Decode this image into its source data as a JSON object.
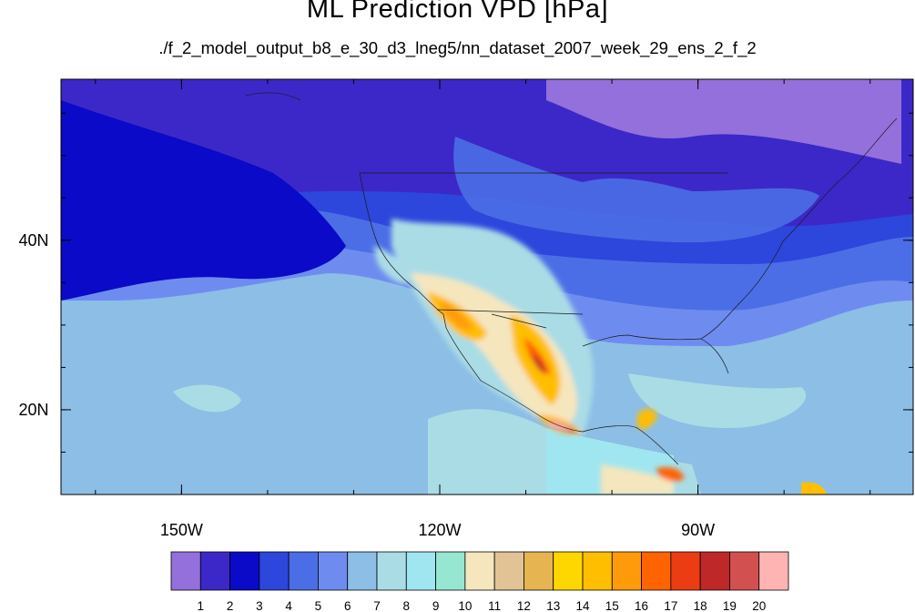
{
  "title": "ML Prediction VPD [hPa]",
  "subtitle": "./f_2_model_output_b8_e_30_d3_lneg5/nn_dataset_2007_week_29_ens_2_f_2",
  "map": {
    "lon_range": [
      -164,
      -65
    ],
    "lat_range": [
      10,
      59
    ],
    "lon_ticks": [
      {
        "value": -150,
        "label": "150W"
      },
      {
        "value": -120,
        "label": "120W"
      },
      {
        "value": -90,
        "label": "90W"
      }
    ],
    "lat_ticks": [
      {
        "value": 40,
        "label": "40N"
      },
      {
        "value": 20,
        "label": "20N"
      }
    ]
  },
  "colorbar": {
    "colors": [
      "#9370db",
      "#3c28c8",
      "#0a0ac8",
      "#2d46dc",
      "#4b6ee6",
      "#6e8cf0",
      "#8cbee6",
      "#aadce6",
      "#a0e6f0",
      "#96e6d2",
      "#f5e6be",
      "#e1c396",
      "#e6b450",
      "#ffd700",
      "#ffbe00",
      "#ff9b0a",
      "#ff6400",
      "#eb3c14",
      "#be2828",
      "#d25050",
      "#ffb4b4"
    ],
    "labels": [
      "1",
      "2",
      "3",
      "4",
      "5",
      "6",
      "7",
      "8",
      "9",
      "10",
      "11",
      "12",
      "13",
      "14",
      "15",
      "16",
      "17",
      "18",
      "19",
      "20"
    ]
  }
}
